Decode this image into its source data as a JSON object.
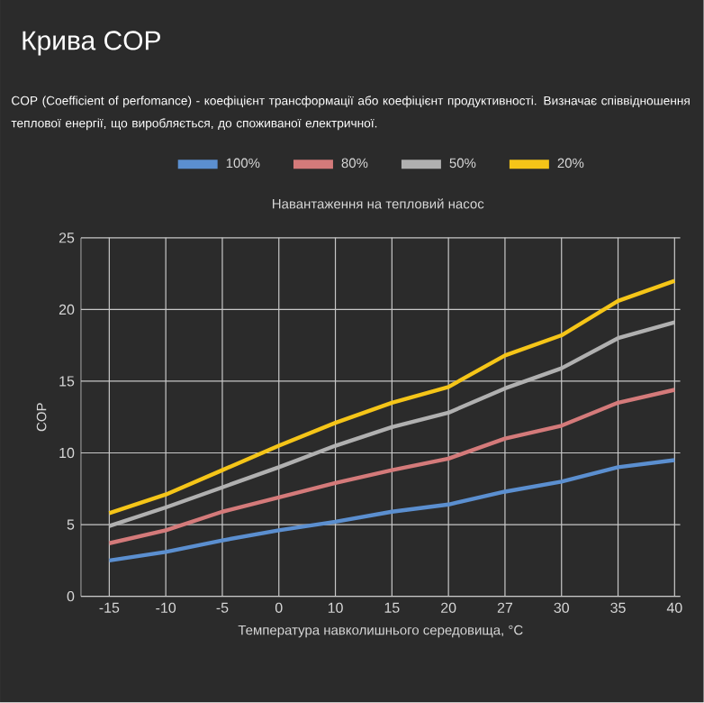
{
  "chart_data": {
    "type": "line",
    "title": "Крива COP",
    "subtitle": "COP (Coefficient of perfomance) - коефіцієнт трансформації або коефіцієнт продуктивності. Визначає співвідношення теплової енергії, що виробляється, до споживаної електричної.",
    "legend_title": "Навантаження на тепловий насос",
    "xlabel": "Температура навколишнього середовища, °C",
    "ylabel": "COP",
    "categories": [
      "-15",
      "-10",
      "-5",
      "0",
      "10",
      "15",
      "20",
      "27",
      "30",
      "35",
      "40"
    ],
    "series": [
      {
        "name": "100%",
        "color": "#5b8fd0",
        "values": [
          2.5,
          3.1,
          3.9,
          4.6,
          5.2,
          5.9,
          6.4,
          7.3,
          8.0,
          9.0,
          9.5
        ]
      },
      {
        "name": "80%",
        "color": "#d47a7a",
        "values": [
          3.7,
          4.6,
          5.9,
          6.9,
          7.9,
          8.8,
          9.6,
          11.0,
          11.9,
          13.5,
          14.4
        ]
      },
      {
        "name": "50%",
        "color": "#b0b0b0",
        "values": [
          4.9,
          6.2,
          7.6,
          9.0,
          10.5,
          11.8,
          12.8,
          14.5,
          15.9,
          18.0,
          19.1
        ]
      },
      {
        "name": "20%",
        "color": "#f5c518",
        "values": [
          5.8,
          7.1,
          8.8,
          10.5,
          12.1,
          13.5,
          14.6,
          16.8,
          18.2,
          20.6,
          22.0
        ]
      }
    ],
    "ylim": [
      0,
      25
    ],
    "yticks": [
      0,
      5,
      10,
      15,
      20,
      25
    ],
    "grid": true,
    "legend": "top",
    "marker": "none",
    "line_style": "solid"
  }
}
